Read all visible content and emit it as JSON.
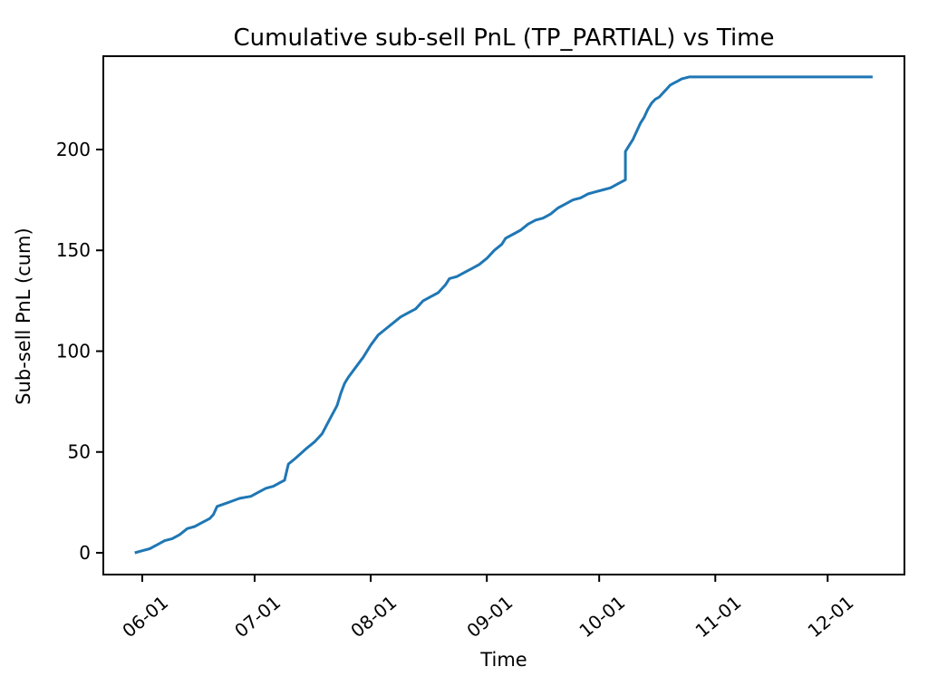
{
  "chart_data": {
    "type": "line",
    "title": "Cumulative sub-sell PnL (TP_PARTIAL) vs Time",
    "xlabel": "Time",
    "ylabel": "Sub-sell PnL (cum)",
    "grid": false,
    "legend": "none",
    "background_color": "#ffffff",
    "axis_color": "#000000",
    "line_color": "#1f77b4",
    "line_width": 3,
    "x_tick_labels": [
      "06-01",
      "07-01",
      "08-01",
      "09-01",
      "10-01",
      "11-01",
      "12-01"
    ],
    "y_ticks": [
      0,
      50,
      100,
      150,
      200
    ],
    "x_range_days": [
      141.6,
      355.5
    ],
    "y_range": [
      -10.8,
      246.3
    ],
    "series": [
      {
        "name": "cumulative-sub-sell-pnl",
        "points": [
          [
            "05-30",
            0
          ],
          [
            "06-01",
            1
          ],
          [
            "06-03",
            2
          ],
          [
            "06-05",
            4
          ],
          [
            "06-07",
            6
          ],
          [
            "06-09",
            7
          ],
          [
            "06-11",
            9
          ],
          [
            "06-13",
            12
          ],
          [
            "06-15",
            13
          ],
          [
            "06-17",
            15
          ],
          [
            "06-19",
            17
          ],
          [
            "06-20",
            19
          ],
          [
            "06-21",
            23
          ],
          [
            "06-24",
            25
          ],
          [
            "06-27",
            27
          ],
          [
            "06-30",
            28
          ],
          [
            "07-02",
            30
          ],
          [
            "07-04",
            32
          ],
          [
            "07-06",
            33
          ],
          [
            "07-08",
            35
          ],
          [
            "07-09",
            36
          ],
          [
            "07-10",
            44
          ],
          [
            "07-12",
            47
          ],
          [
            "07-15",
            52
          ],
          [
            "07-17",
            55
          ],
          [
            "07-19",
            59
          ],
          [
            "07-21",
            66
          ],
          [
            "07-23",
            73
          ],
          [
            "07-24",
            79
          ],
          [
            "07-25",
            84
          ],
          [
            "07-26",
            87
          ],
          [
            "07-28",
            92
          ],
          [
            "07-30",
            97
          ],
          [
            "08-01",
            103
          ],
          [
            "08-03",
            108
          ],
          [
            "08-05",
            111
          ],
          [
            "08-07",
            114
          ],
          [
            "08-09",
            117
          ],
          [
            "08-11",
            119
          ],
          [
            "08-13",
            121
          ],
          [
            "08-15",
            125
          ],
          [
            "08-17",
            127
          ],
          [
            "08-19",
            129
          ],
          [
            "08-21",
            133
          ],
          [
            "08-22",
            136
          ],
          [
            "08-24",
            137
          ],
          [
            "08-26",
            139
          ],
          [
            "08-28",
            141
          ],
          [
            "08-30",
            143
          ],
          [
            "09-01",
            146
          ],
          [
            "09-03",
            150
          ],
          [
            "09-05",
            153
          ],
          [
            "09-06",
            156
          ],
          [
            "09-08",
            158
          ],
          [
            "09-10",
            160
          ],
          [
            "09-12",
            163
          ],
          [
            "09-14",
            165
          ],
          [
            "09-16",
            166
          ],
          [
            "09-18",
            168
          ],
          [
            "09-20",
            171
          ],
          [
            "09-22",
            173
          ],
          [
            "09-24",
            175
          ],
          [
            "09-26",
            176
          ],
          [
            "09-28",
            178
          ],
          [
            "09-30",
            179
          ],
          [
            "10-02",
            180
          ],
          [
            "10-04",
            181
          ],
          [
            "10-06",
            183
          ],
          [
            "10-08",
            185
          ],
          [
            "10-08",
            199
          ],
          [
            "10-09",
            202
          ],
          [
            "10-10",
            205
          ],
          [
            "10-11",
            209
          ],
          [
            "10-12",
            213
          ],
          [
            "10-13",
            216
          ],
          [
            "10-14",
            220
          ],
          [
            "10-15",
            223
          ],
          [
            "10-16",
            225
          ],
          [
            "10-17",
            226
          ],
          [
            "10-18",
            228
          ],
          [
            "10-19",
            230
          ],
          [
            "10-20",
            232
          ],
          [
            "10-21",
            233
          ],
          [
            "10-22",
            234
          ],
          [
            "10-23",
            235
          ],
          [
            "10-25",
            236
          ],
          [
            "12-13",
            236
          ]
        ]
      }
    ]
  }
}
